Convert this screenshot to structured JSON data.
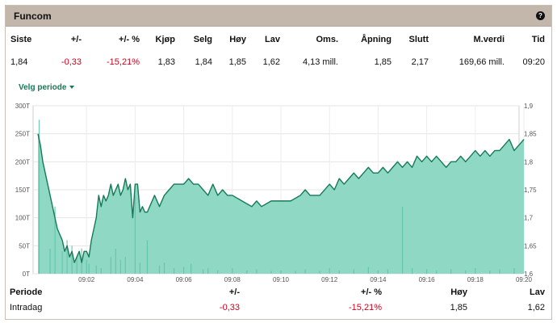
{
  "header": {
    "title": "Funcom",
    "help_icon": "help-circle-icon"
  },
  "quote": {
    "columns": [
      "Siste",
      "+/-",
      "+/- %",
      "Kjøp",
      "Selg",
      "Høy",
      "Lav",
      "Oms.",
      "Åpning",
      "Slutt",
      "M.verdi",
      "Tid"
    ],
    "values": [
      "1,84",
      "-0,33",
      "-15,21%",
      "1,83",
      "1,84",
      "1,85",
      "1,62",
      "4,13 mill.",
      "1,85",
      "2,17",
      "169,66 mill.",
      "09:20"
    ]
  },
  "period_select": {
    "label": "Velg periode",
    "icon": "caret-down-icon"
  },
  "colors": {
    "accent": "#157a58",
    "area_fill": "#8fd9c4",
    "negative": "#d0021b",
    "header_bg": "#c3b6ab"
  },
  "chart_data": {
    "type": "area",
    "x_ticks": [
      "09:02",
      "09:04",
      "09:06",
      "09:08",
      "09:10",
      "09:12",
      "09:14",
      "09:16",
      "09:18",
      "09:20"
    ],
    "y_left_ticks": [
      "0T",
      "50T",
      "100T",
      "150T",
      "200T",
      "250T",
      "300T"
    ],
    "y_right_ticks": [
      "1,6",
      "1,65",
      "1,7",
      "1,75",
      "1,8",
      "1,85",
      "1,9"
    ],
    "y_left_range": [
      0,
      300000
    ],
    "y_right_range": [
      1.6,
      1.9
    ],
    "grid": true,
    "price_series": {
      "x_minutes": [
        0,
        0.1,
        0.2,
        0.4,
        0.6,
        0.8,
        1.0,
        1.1,
        1.2,
        1.3,
        1.4,
        1.5,
        1.6,
        1.7,
        1.8,
        1.9,
        2.0,
        2.1,
        2.2,
        2.3,
        2.4,
        2.5,
        2.6,
        2.7,
        2.8,
        2.9,
        3.0,
        3.1,
        3.2,
        3.3,
        3.4,
        3.5,
        3.6,
        3.7,
        3.8,
        3.9,
        4.0,
        4.1,
        4.2,
        4.3,
        4.4,
        4.5,
        4.8,
        5.0,
        5.2,
        5.4,
        5.6,
        5.8,
        6.0,
        6.2,
        6.4,
        6.6,
        6.8,
        7.0,
        7.2,
        7.4,
        7.6,
        7.8,
        8.0,
        8.4,
        8.8,
        9.0,
        9.2,
        9.6,
        10.0,
        10.4,
        10.8,
        11.0,
        11.2,
        11.6,
        12.0,
        12.2,
        12.4,
        12.6,
        12.8,
        13.0,
        13.2,
        13.4,
        13.6,
        13.8,
        14.0,
        14.2,
        14.4,
        14.6,
        14.8,
        15.0,
        15.2,
        15.4,
        15.6,
        15.8,
        16.0,
        16.2,
        16.4,
        16.6,
        16.8,
        17.0,
        17.2,
        17.4,
        17.6,
        17.8,
        18.0,
        18.2,
        18.4,
        18.6,
        18.8,
        19.0,
        19.2,
        19.4,
        19.6,
        19.8,
        20.0
      ],
      "values": [
        1.85,
        1.83,
        1.8,
        1.76,
        1.72,
        1.68,
        1.66,
        1.64,
        1.65,
        1.63,
        1.64,
        1.62,
        1.63,
        1.64,
        1.62,
        1.64,
        1.64,
        1.63,
        1.66,
        1.68,
        1.7,
        1.74,
        1.72,
        1.74,
        1.73,
        1.74,
        1.76,
        1.74,
        1.75,
        1.76,
        1.74,
        1.75,
        1.77,
        1.75,
        1.76,
        1.7,
        1.76,
        1.76,
        1.71,
        1.72,
        1.71,
        1.71,
        1.74,
        1.72,
        1.74,
        1.75,
        1.76,
        1.76,
        1.76,
        1.77,
        1.76,
        1.76,
        1.75,
        1.74,
        1.76,
        1.74,
        1.75,
        1.74,
        1.74,
        1.73,
        1.72,
        1.73,
        1.72,
        1.73,
        1.73,
        1.73,
        1.74,
        1.75,
        1.74,
        1.74,
        1.76,
        1.75,
        1.77,
        1.76,
        1.77,
        1.78,
        1.77,
        1.78,
        1.79,
        1.78,
        1.78,
        1.79,
        1.78,
        1.79,
        1.8,
        1.79,
        1.8,
        1.79,
        1.81,
        1.8,
        1.81,
        1.8,
        1.81,
        1.8,
        1.79,
        1.8,
        1.8,
        1.81,
        1.8,
        1.81,
        1.82,
        1.81,
        1.82,
        1.81,
        1.82,
        1.82,
        1.83,
        1.84,
        1.82,
        1.83,
        1.84
      ]
    },
    "volume_series": {
      "x_minutes": [
        0.05,
        0.5,
        0.7,
        1.0,
        1.2,
        1.4,
        1.6,
        1.8,
        2.0,
        2.1,
        2.4,
        2.6,
        3.0,
        3.2,
        3.4,
        3.6,
        4.0,
        4.2,
        4.5,
        5.0,
        5.2,
        5.6,
        6.0,
        6.3,
        6.8,
        7.0,
        7.4,
        8.0,
        8.6,
        9.0,
        9.6,
        10.0,
        10.6,
        11.0,
        11.6,
        12.0,
        12.4,
        13.0,
        13.6,
        14.0,
        14.4,
        15.0,
        15.4,
        16.0,
        16.4,
        17.0,
        17.6,
        18.0,
        18.6,
        19.0,
        19.6
      ],
      "values": [
        275000,
        45000,
        120000,
        40000,
        60000,
        50000,
        30000,
        45000,
        25000,
        18000,
        15000,
        10000,
        30000,
        45000,
        25000,
        30000,
        140000,
        20000,
        60000,
        15000,
        20000,
        10000,
        12000,
        18000,
        8000,
        10000,
        6000,
        10000,
        6000,
        8000,
        5000,
        6000,
        5000,
        8000,
        5000,
        10000,
        6000,
        8000,
        12000,
        6000,
        8000,
        120000,
        10000,
        8000,
        6000,
        8000,
        6000,
        10000,
        6000,
        8000,
        10000
      ]
    }
  },
  "summary": {
    "columns": [
      "Periode",
      "+/-",
      "+/- %",
      "Høy",
      "Lav"
    ],
    "values": [
      "Intradag",
      "-0,33",
      "-15,21%",
      "1,85",
      "1,62"
    ]
  }
}
